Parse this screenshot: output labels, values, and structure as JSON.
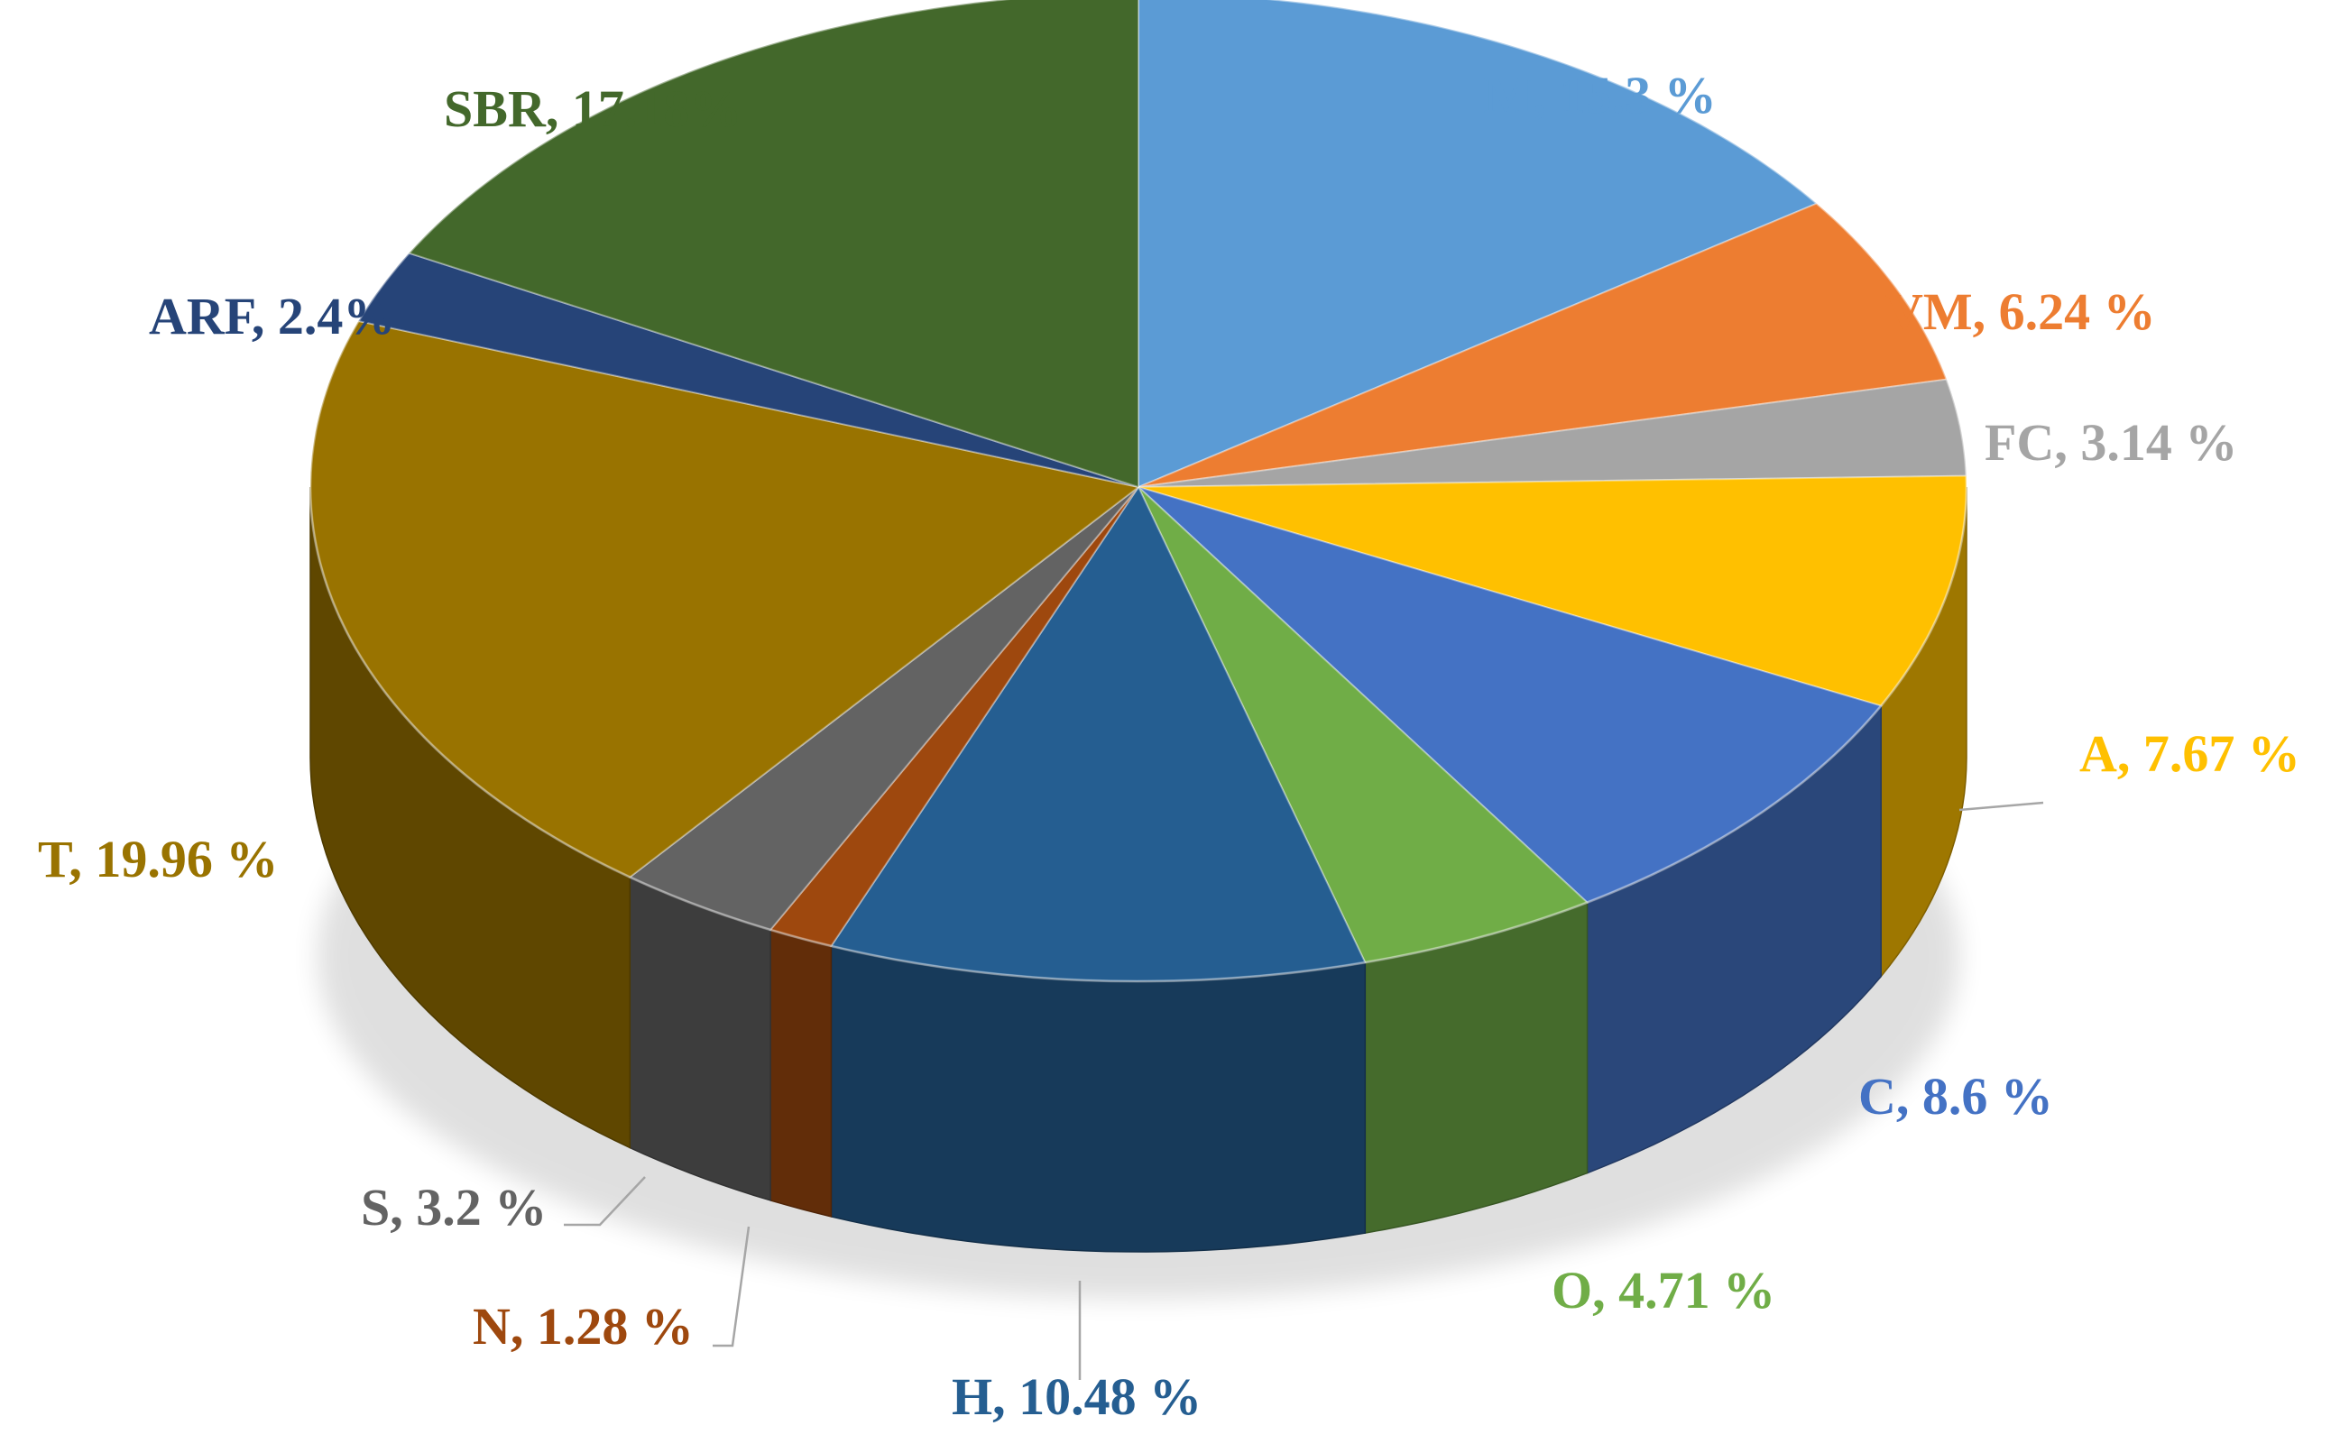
{
  "chart_data": {
    "type": "pie",
    "style": "3d-exploded-perspective",
    "title": "",
    "slices": [
      {
        "name": "M",
        "label": "M, 15.3 %",
        "value": 15.3,
        "color": "#5B9BD5"
      },
      {
        "name": "VM",
        "label": "VM, 6.24 %",
        "value": 6.24,
        "color": "#ED7D31"
      },
      {
        "name": "FC",
        "label": "FC, 3.14 %",
        "value": 3.14,
        "color": "#A5A5A5"
      },
      {
        "name": "A",
        "label": "A, 7.67 %",
        "value": 7.67,
        "color": "#FFC000"
      },
      {
        "name": "C",
        "label": "C, 8.6 %",
        "value": 8.6,
        "color": "#4472C4"
      },
      {
        "name": "O",
        "label": "O, 4.71 %",
        "value": 4.71,
        "color": "#70AD47"
      },
      {
        "name": "H",
        "label": "H, 10.48 %",
        "value": 10.48,
        "color": "#255E91"
      },
      {
        "name": "N",
        "label": "N, 1.28 %",
        "value": 1.28,
        "color": "#9E480E"
      },
      {
        "name": "S",
        "label": "S, 3.2 %",
        "value": 3.2,
        "color": "#636363"
      },
      {
        "name": "T",
        "label": "T, 19.96 %",
        "value": 19.96,
        "color": "#997300"
      },
      {
        "name": "ARF",
        "label": "ARF, 2.4%",
        "value": 2.4,
        "color": "#264478"
      },
      {
        "name": "SBR",
        "label": "SBR, 17.18%",
        "value": 17.18,
        "color": "#43682B"
      }
    ]
  }
}
